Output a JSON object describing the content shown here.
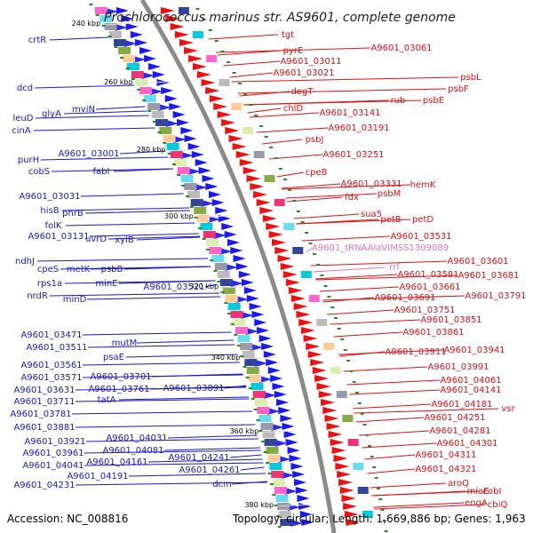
{
  "title": "Prochlorococcus marinus str. AS9601, complete genome",
  "footer": {
    "accession": "Accession: NC_008816",
    "summary": "Topology: circular; Length: 1,669,886 bp; Genes: 1,963"
  },
  "colors": {
    "left_label": "#1818c8",
    "right_label": "#e01010",
    "rna_label": "#f070b0",
    "backbone": "#8a8a8a",
    "tick": "#2a8a2a"
  },
  "ticks": [
    "240 kbp",
    "260 kbp",
    "280 kbp",
    "300 kbp",
    "320 kbp",
    "340 kbp",
    "360 kbp",
    "380 kbp"
  ],
  "left_labels": [
    "crtR",
    "dcd",
    "leuD",
    "glyA",
    "mviN",
    "cinA",
    "purH",
    "A9601_03001",
    "cobS",
    "fabI",
    "A9601_03031",
    "hisB",
    "phrB",
    "folK",
    "A9601_03131",
    "ndhJ",
    "uvrD",
    "xylB",
    "cpeS",
    "metK",
    "psbB",
    "rps1a",
    "minE",
    "A9601_03521",
    "nrdR",
    "minD",
    "A9601_03471",
    "A9601_03511",
    "mutM",
    "A9601_03561",
    "psaE",
    "A9601_03571",
    "A9601_03701",
    "A9601_03631",
    "A9601_03761",
    "A9601_03891",
    "A9601_03711",
    "tatA",
    "A9601_03781",
    "A9601_03881",
    "A9601_03921",
    "A9601_04031",
    "A9601_03961",
    "A9601_04081",
    "A9601_04041",
    "A9601_04161",
    "A9601_04241",
    "A9601_04191",
    "A9601_04261",
    "A9601_04231",
    "dcm"
  ],
  "right_labels": [
    "tgt",
    "pyrE",
    "A9601_03061",
    "A9601_03011",
    "A9601_03021",
    "psbL",
    "psbF",
    "degT",
    "rub",
    "psbE",
    "chlD",
    "A9601_03141",
    "A9601_03191",
    "psbJ",
    "A9601_03251",
    "cpeB",
    "hemK",
    "A9601_03331",
    "psbM",
    "fdx",
    "sua5",
    "petB",
    "petD",
    "A9601_03531",
    "A9601_03601",
    "A9601_03581",
    "A9601_03681",
    "A9601_03661",
    "A9601_03691",
    "A9601_03791",
    "A9601_03751",
    "A9601_03851",
    "A9601_03861",
    "A9601_03911",
    "A9601_03941",
    "A9601_03991",
    "A9601_04061",
    "A9601_04141",
    "A9601_04181",
    "vsr",
    "A9601_04251",
    "A9601_04281",
    "A9601_04301",
    "A9601_04311",
    "A9601_04321",
    "aroQ",
    "miaE",
    "cobI",
    "engA",
    "cbiQ"
  ],
  "rna_labels": [
    "A9601_tRNAAlaVIMSS1309089",
    "rrf"
  ]
}
